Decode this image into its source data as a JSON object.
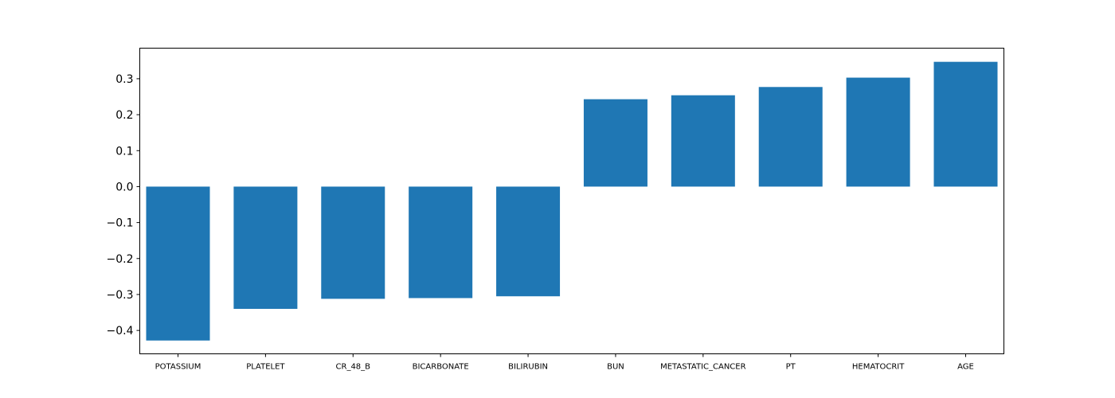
{
  "chart_data": {
    "type": "bar",
    "title": "",
    "xlabel": "",
    "ylabel": "",
    "categories": [
      "POTASSIUM",
      "PLATELET",
      "CR_48_B",
      "BICARBONATE",
      "BILIRUBIN",
      "BUN",
      "METASTATIC_CANCER",
      "PT",
      "HEMATOCRIT",
      "AGE"
    ],
    "values": [
      -0.428,
      -0.34,
      -0.312,
      -0.31,
      -0.305,
      0.243,
      0.254,
      0.277,
      0.303,
      0.347
    ],
    "ylim": [
      -0.465,
      0.385
    ],
    "yticks": [
      0.3,
      0.2,
      0.1,
      0.0,
      -0.1,
      -0.2,
      -0.3,
      -0.4
    ],
    "ytick_labels": [
      "0.3",
      "0.2",
      "0.1",
      "0.0",
      "−0.1",
      "−0.2",
      "−0.3",
      "−0.4"
    ],
    "bar_color": "#1f77b4",
    "grid": false,
    "legend": "none"
  }
}
